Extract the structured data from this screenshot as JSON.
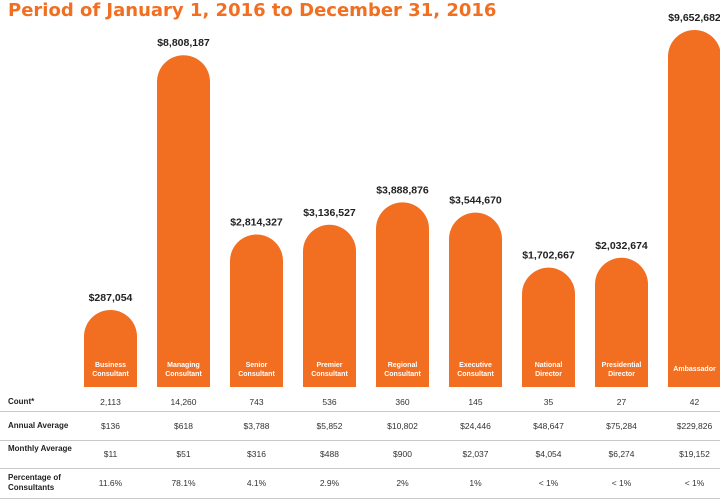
{
  "title": "Period of January 1, 2016 to December 31, 2016",
  "colors": {
    "bar": "#f26f21",
    "title": "#f26f21",
    "bar_label": "#ffffff",
    "value_label": "#222222"
  },
  "chart_data": {
    "type": "bar",
    "categories": [
      [
        "Business",
        "Consultant"
      ],
      [
        "Managing",
        "Consultant"
      ],
      [
        "Senior",
        "Consultant"
      ],
      [
        "Premier",
        "Consultant"
      ],
      [
        "Regional",
        "Consultant"
      ],
      [
        "Executive",
        "Consultant"
      ],
      [
        "National",
        "Director"
      ],
      [
        "Presidential",
        "Director"
      ],
      [
        "Ambassador"
      ]
    ],
    "values": [
      287054,
      8808187,
      2814327,
      3136527,
      3888876,
      3544670,
      1702667,
      2032674,
      9652682
    ],
    "value_labels": [
      "$287,054",
      "$8,808,187",
      "$2,814,327",
      "$3,136,527",
      "$3,888,876",
      "$3,544,670",
      "$1,702,667",
      "$2,032,674",
      "$9,652,682"
    ]
  },
  "table": {
    "rows": [
      {
        "label": "Count*",
        "values": [
          "2,113",
          "14,260",
          "743",
          "536",
          "360",
          "145",
          "35",
          "27",
          "42"
        ]
      },
      {
        "label": "Annual Average",
        "values": [
          "$136",
          "$618",
          "$3,788",
          "$5,852",
          "$10,802",
          "$24,446",
          "$48,647",
          "$75,284",
          "$229,826"
        ]
      },
      {
        "label": "Monthly Average",
        "values": [
          "$11",
          "$51",
          "$316",
          "$488",
          "$900",
          "$2,037",
          "$4,054",
          "$6,274",
          "$19,152"
        ]
      },
      {
        "label": "Percentage of Consultants",
        "values": [
          "11.6%",
          "78.1%",
          "4.1%",
          "2.9%",
          "2%",
          "1%",
          "< 1%",
          "< 1%",
          "< 1%"
        ]
      }
    ]
  }
}
